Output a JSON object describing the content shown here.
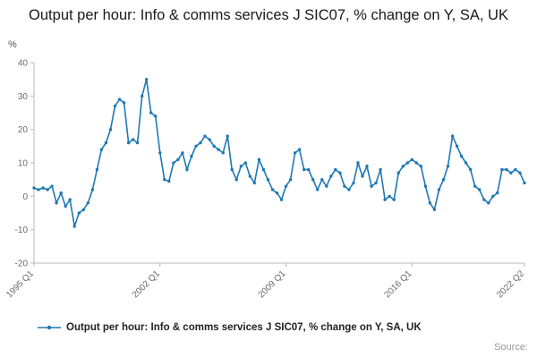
{
  "chart_data": {
    "type": "line",
    "title": "Output per hour: Info & comms services J SIC07, % change on Y, SA, UK",
    "legend": "Output per hour: Info & comms services J SIC07, % change on Y, SA, UK",
    "source": "Source:",
    "ylabel": "%",
    "xlabel": "",
    "ylim": [
      -20,
      40
    ],
    "yticks": [
      40,
      30,
      20,
      10,
      0,
      -10,
      -20
    ],
    "xtick_labels": [
      "1995 Q1",
      "2002 Q1",
      "2009 Q1",
      "2016 Q1",
      "2022 Q2"
    ],
    "xtick_indices": [
      0,
      28,
      56,
      84,
      109
    ],
    "x_start": "1995 Q1",
    "x_end": "2022 Q2",
    "frequency": "quarterly",
    "line_color": "#1f78b4",
    "grid": false,
    "legend_position": "bottom",
    "values": [
      2.5,
      2,
      2.5,
      2,
      3,
      -2,
      1,
      -3,
      -1,
      -9,
      -5,
      -4,
      -2,
      2,
      8,
      14,
      16,
      20,
      27,
      29,
      28,
      16,
      17,
      16,
      30,
      35,
      25,
      24,
      13,
      5,
      4.5,
      10,
      11,
      13,
      8,
      12,
      15,
      16,
      18,
      17,
      15,
      14,
      13,
      18,
      8,
      5,
      9,
      10,
      6,
      4,
      11,
      8,
      5,
      2,
      1,
      -1,
      3,
      5,
      13,
      14,
      8,
      8,
      5,
      2,
      5,
      3,
      6,
      8,
      7,
      3,
      2,
      4,
      10,
      6,
      9,
      3,
      4,
      8,
      -1,
      0,
      -1,
      7,
      9,
      10,
      11,
      10,
      9,
      3,
      -2,
      -4,
      2,
      5,
      9,
      18,
      15,
      12,
      10,
      8,
      3,
      2,
      -1,
      -2,
      0,
      1,
      8,
      8,
      7,
      8,
      7,
      4
    ]
  }
}
